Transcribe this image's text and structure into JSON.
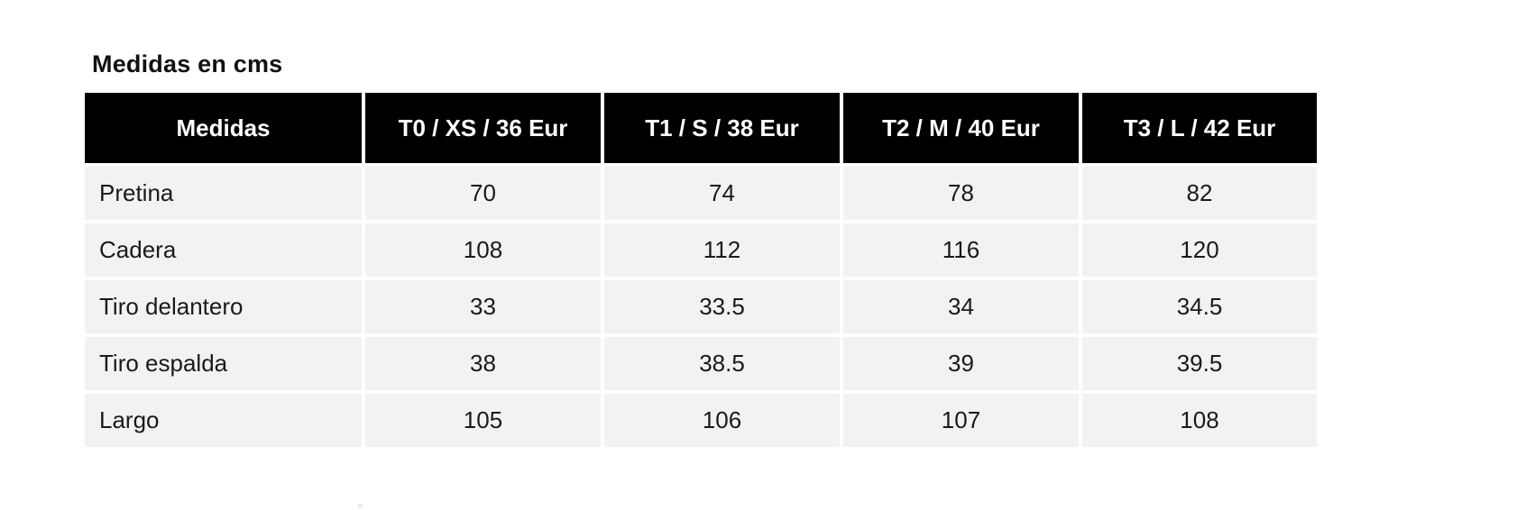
{
  "title": "Medidas en cms",
  "table": {
    "columns": [
      "Medidas",
      "T0 / XS / 36 Eur",
      "T1 / S / 38 Eur",
      "T2 / M / 40 Eur",
      "T3 / L / 42 Eur"
    ],
    "rows": [
      {
        "label": "Pretina",
        "values": [
          "70",
          "74",
          "78",
          "82"
        ]
      },
      {
        "label": "Cadera",
        "values": [
          "108",
          "112",
          "116",
          "120"
        ]
      },
      {
        "label": "Tiro delantero",
        "values": [
          "33",
          "33.5",
          "34",
          "34.5"
        ]
      },
      {
        "label": "Tiro espalda",
        "values": [
          "38",
          "38.5",
          "39",
          "39.5"
        ]
      },
      {
        "label": "Largo",
        "values": [
          "105",
          "106",
          "107",
          "108"
        ]
      }
    ],
    "colors": {
      "header_bg": "#000000",
      "header_text": "#ffffff",
      "row_bg": "#f2f2f2",
      "body_text": "#1a1a1a",
      "gap": "#ffffff"
    },
    "unit": "cms"
  }
}
